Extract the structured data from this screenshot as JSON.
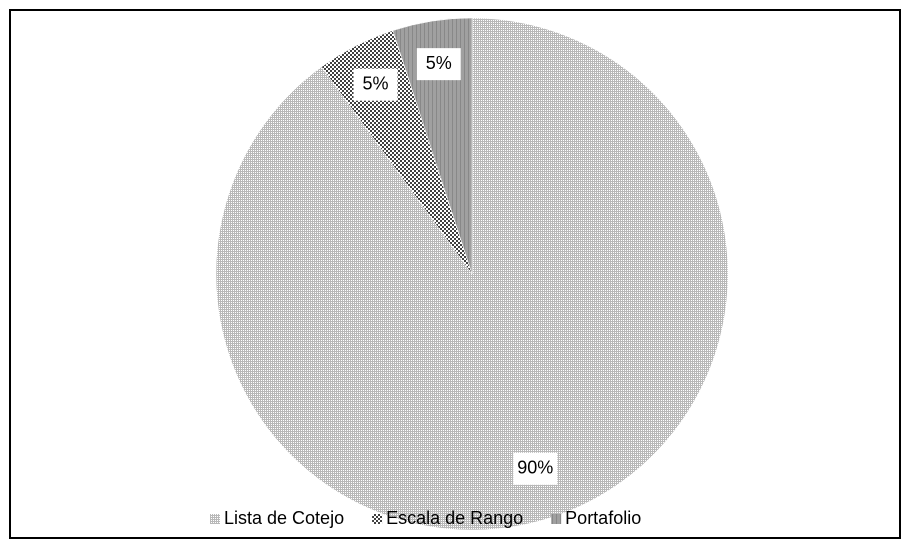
{
  "chart_data": {
    "type": "pie",
    "categories": [
      "Lista de Cotejo",
      "Escala de Rango",
      "Portafolio"
    ],
    "values": [
      90,
      5,
      5
    ],
    "value_labels": [
      "90%",
      "5%",
      "5%"
    ],
    "colors": [
      "#b8b8b8",
      "#404040",
      "#a0a0a0"
    ],
    "legend": "bottom"
  }
}
